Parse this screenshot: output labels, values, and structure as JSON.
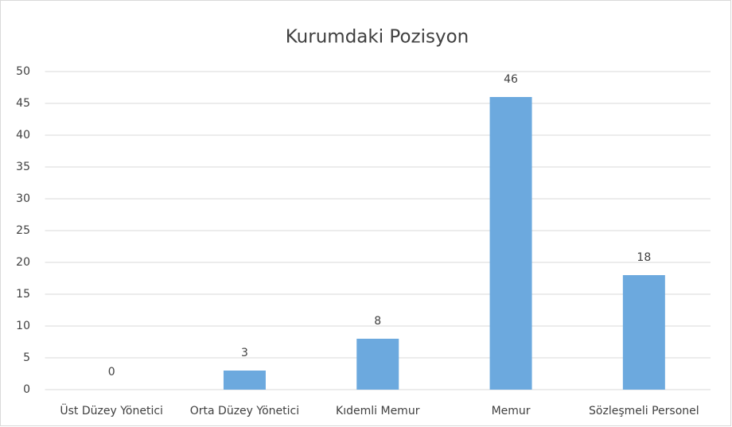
{
  "chart_data": {
    "type": "bar",
    "title": "Kurumdaki Pozisyon",
    "categories": [
      "Üst Düzey Yönetici",
      "Orta Düzey Yönetici",
      "Kıdemli Memur",
      "Memur",
      "Sözleşmeli Personel"
    ],
    "values": [
      0,
      3,
      8,
      46,
      18
    ],
    "color": "#6ca9de",
    "ylim": [
      0,
      50
    ],
    "yticks": [
      0,
      5,
      10,
      15,
      20,
      25,
      30,
      35,
      40,
      45,
      50
    ],
    "grid": true
  }
}
